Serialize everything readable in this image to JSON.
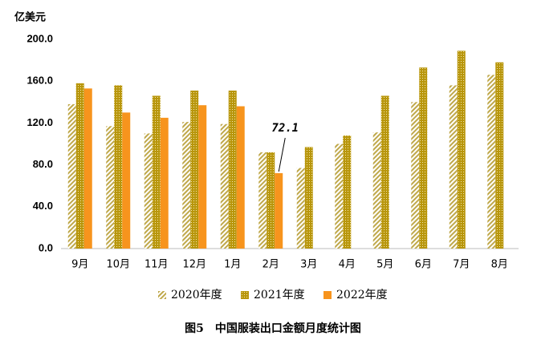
{
  "chart_data": {
    "type": "bar",
    "title": "图5　中国服装出口金额月度统计图",
    "y_label": "亿美元",
    "annotation": "72.1",
    "categories": [
      "9月",
      "10月",
      "11月",
      "12月",
      "1月",
      "2月",
      "3月",
      "4月",
      "5月",
      "6月",
      "7月",
      "8月"
    ],
    "series": [
      {
        "name": "2020年度",
        "color": "#bfa84a",
        "pattern": "hatch",
        "values": [
          138,
          117,
          110,
          121,
          119,
          92,
          77,
          100,
          111,
          140,
          156,
          166
        ]
      },
      {
        "name": "2021年度",
        "color": "#b8960c",
        "pattern": "dots",
        "values": [
          158,
          156,
          146,
          151,
          151,
          92,
          97,
          108,
          146,
          173,
          189,
          178
        ]
      },
      {
        "name": "2022年度",
        "color": "#f7941d",
        "pattern": "solid",
        "values": [
          153,
          130,
          125,
          137,
          136,
          72.1,
          null,
          null,
          null,
          null,
          null,
          null
        ]
      }
    ],
    "ylim": [
      0,
      200
    ],
    "yticks": [
      {
        "value": 0,
        "label": "0.0"
      },
      {
        "value": 40,
        "label": "40.0"
      },
      {
        "value": 80,
        "label": "80.0"
      },
      {
        "value": 120,
        "label": "120.0"
      },
      {
        "value": 160,
        "label": "160.0"
      },
      {
        "value": 200,
        "label": "200.0"
      }
    ],
    "grid": false
  }
}
